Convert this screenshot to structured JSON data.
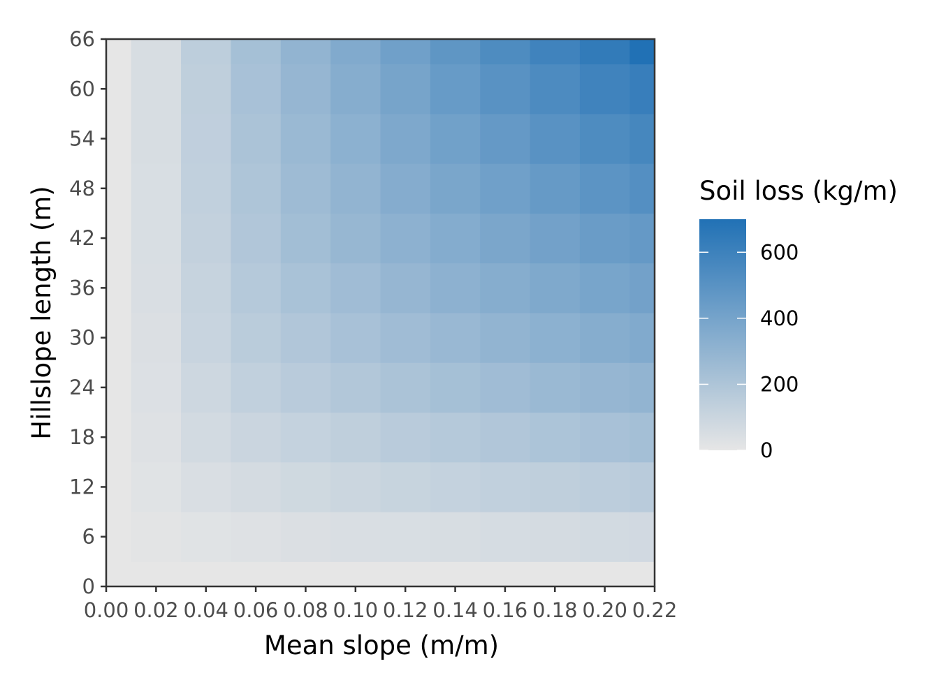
{
  "chart_data": {
    "type": "heatmap",
    "xlabel": "Mean slope (m/m)",
    "ylabel": "Hillslope length (m)",
    "xlim": [
      0,
      0.22
    ],
    "ylim": [
      0,
      66
    ],
    "x_ticks": [
      "0.00",
      "0.02",
      "0.04",
      "0.06",
      "0.08",
      "0.10",
      "0.12",
      "0.14",
      "0.16",
      "0.18",
      "0.20",
      "0.22"
    ],
    "y_ticks": [
      "0",
      "6",
      "12",
      "18",
      "24",
      "30",
      "36",
      "42",
      "48",
      "54",
      "60",
      "66"
    ],
    "x": [
      0.0,
      0.02,
      0.04,
      0.06,
      0.08,
      0.1,
      0.12,
      0.14,
      0.16,
      0.18,
      0.2,
      0.22
    ],
    "y": [
      0,
      6,
      12,
      18,
      24,
      30,
      36,
      42,
      48,
      54,
      60,
      66
    ],
    "z": [
      [
        0,
        0,
        0,
        0,
        0,
        0,
        0,
        0,
        0,
        0,
        0,
        0
      ],
      [
        0,
        10,
        20,
        30,
        40,
        45,
        50,
        55,
        60,
        65,
        70,
        75
      ],
      [
        0,
        20,
        45,
        65,
        80,
        95,
        110,
        120,
        130,
        140,
        150,
        160
      ],
      [
        0,
        30,
        70,
        100,
        120,
        140,
        160,
        175,
        190,
        205,
        220,
        235
      ],
      [
        0,
        35,
        90,
        130,
        160,
        185,
        210,
        230,
        250,
        270,
        285,
        300
      ],
      [
        0,
        40,
        105,
        155,
        190,
        220,
        250,
        275,
        300,
        320,
        340,
        360
      ],
      [
        0,
        45,
        115,
        175,
        215,
        250,
        285,
        315,
        340,
        365,
        390,
        410
      ],
      [
        0,
        48,
        125,
        190,
        240,
        280,
        315,
        350,
        380,
        410,
        440,
        460
      ],
      [
        0,
        50,
        130,
        200,
        255,
        300,
        345,
        385,
        420,
        455,
        490,
        520
      ],
      [
        0,
        52,
        135,
        210,
        270,
        320,
        370,
        415,
        460,
        500,
        540,
        570
      ],
      [
        0,
        53,
        140,
        220,
        285,
        340,
        395,
        450,
        500,
        545,
        590,
        620
      ],
      [
        0,
        55,
        145,
        230,
        300,
        360,
        420,
        480,
        540,
        590,
        640,
        700
      ]
    ],
    "legend": {
      "title": "Soil loss (kg/m)",
      "placement": "right",
      "ticks": [
        "0",
        "200",
        "400",
        "600"
      ],
      "tick_values": [
        0,
        200,
        400,
        600
      ],
      "range": [
        0,
        700
      ],
      "color_low": "#e6e6e6",
      "color_high": "#2171b5"
    },
    "grid": false
  }
}
